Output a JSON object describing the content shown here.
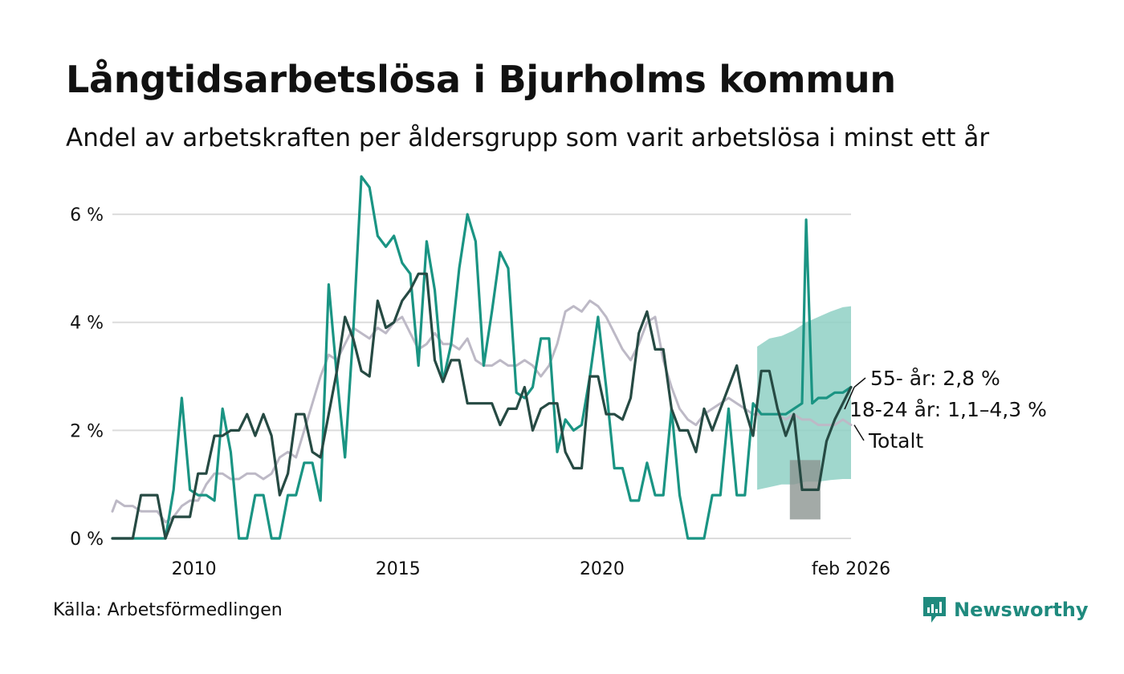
{
  "header": {
    "title": "Långtidsarbetslösa i Bjurholms kommun",
    "subtitle": "Andel av arbetskraften per åldersgrupp som varit arbetslösa i minst ett år"
  },
  "footer": {
    "source": "Källa: Arbetsförmedlingen",
    "brand": "Newsworthy"
  },
  "colors": {
    "teal": "#1a9483",
    "teal_band": "#8fd0c4",
    "dark": "#264a43",
    "dark_band": "#8c9591",
    "gray": "#bdb9c6",
    "grid": "#dcdcdc"
  },
  "chart_data": {
    "type": "line",
    "title": "Långtidsarbetslösa i Bjurholms kommun",
    "subtitle": "Andel av arbetskraften per åldersgrupp som varit arbetslösa i minst ett år",
    "xlabel": "",
    "ylabel": "",
    "xlim": [
      2008.0,
      2026.1
    ],
    "ylim": [
      0,
      6.5
    ],
    "y_ticks": [
      {
        "value": 0,
        "label": "0 %"
      },
      {
        "value": 2,
        "label": "2 %"
      },
      {
        "value": 4,
        "label": "4 %"
      },
      {
        "value": 6,
        "label": "6 %"
      }
    ],
    "x_ticks": [
      {
        "value": 2010,
        "label": "2010"
      },
      {
        "value": 2015,
        "label": "2015"
      },
      {
        "value": 2020,
        "label": "2020"
      },
      {
        "value": 2026.1,
        "label": "feb 2026"
      }
    ],
    "grid": true,
    "series": [
      {
        "name": "Totalt",
        "label": "Totalt",
        "color": "#bdb9c6",
        "points": [
          [
            2008.0,
            0.5
          ],
          [
            2008.1,
            0.7
          ],
          [
            2008.3,
            0.6
          ],
          [
            2008.5,
            0.6
          ],
          [
            2008.7,
            0.5
          ],
          [
            2008.9,
            0.5
          ],
          [
            2009.1,
            0.5
          ],
          [
            2009.3,
            0.3
          ],
          [
            2009.5,
            0.4
          ],
          [
            2009.7,
            0.6
          ],
          [
            2009.9,
            0.7
          ],
          [
            2010.1,
            0.7
          ],
          [
            2010.3,
            1.0
          ],
          [
            2010.5,
            1.2
          ],
          [
            2010.7,
            1.2
          ],
          [
            2010.9,
            1.1
          ],
          [
            2011.1,
            1.1
          ],
          [
            2011.3,
            1.2
          ],
          [
            2011.5,
            1.2
          ],
          [
            2011.7,
            1.1
          ],
          [
            2011.9,
            1.2
          ],
          [
            2012.1,
            1.5
          ],
          [
            2012.3,
            1.6
          ],
          [
            2012.5,
            1.5
          ],
          [
            2012.7,
            2.0
          ],
          [
            2012.9,
            2.5
          ],
          [
            2013.1,
            3.0
          ],
          [
            2013.3,
            3.4
          ],
          [
            2013.5,
            3.3
          ],
          [
            2013.7,
            3.6
          ],
          [
            2013.9,
            3.9
          ],
          [
            2014.1,
            3.8
          ],
          [
            2014.3,
            3.7
          ],
          [
            2014.5,
            3.9
          ],
          [
            2014.7,
            3.8
          ],
          [
            2014.9,
            4.0
          ],
          [
            2015.1,
            4.1
          ],
          [
            2015.3,
            3.8
          ],
          [
            2015.5,
            3.5
          ],
          [
            2015.7,
            3.6
          ],
          [
            2015.9,
            3.8
          ],
          [
            2016.1,
            3.6
          ],
          [
            2016.3,
            3.6
          ],
          [
            2016.5,
            3.5
          ],
          [
            2016.7,
            3.7
          ],
          [
            2016.9,
            3.3
          ],
          [
            2017.1,
            3.2
          ],
          [
            2017.3,
            3.2
          ],
          [
            2017.5,
            3.3
          ],
          [
            2017.7,
            3.2
          ],
          [
            2017.9,
            3.2
          ],
          [
            2018.1,
            3.3
          ],
          [
            2018.3,
            3.2
          ],
          [
            2018.5,
            3.0
          ],
          [
            2018.7,
            3.2
          ],
          [
            2018.9,
            3.6
          ],
          [
            2019.1,
            4.2
          ],
          [
            2019.3,
            4.3
          ],
          [
            2019.5,
            4.2
          ],
          [
            2019.7,
            4.4
          ],
          [
            2019.9,
            4.3
          ],
          [
            2020.1,
            4.1
          ],
          [
            2020.3,
            3.8
          ],
          [
            2020.5,
            3.5
          ],
          [
            2020.7,
            3.3
          ],
          [
            2020.9,
            3.6
          ],
          [
            2021.1,
            4.0
          ],
          [
            2021.3,
            4.1
          ],
          [
            2021.5,
            3.3
          ],
          [
            2021.7,
            2.8
          ],
          [
            2021.9,
            2.4
          ],
          [
            2022.1,
            2.2
          ],
          [
            2022.3,
            2.1
          ],
          [
            2022.5,
            2.3
          ],
          [
            2022.7,
            2.4
          ],
          [
            2022.9,
            2.5
          ],
          [
            2023.1,
            2.6
          ],
          [
            2023.3,
            2.5
          ],
          [
            2023.5,
            2.4
          ],
          [
            2023.7,
            2.3
          ],
          [
            2023.9,
            2.3
          ],
          [
            2024.1,
            2.3
          ],
          [
            2024.3,
            2.3
          ],
          [
            2024.5,
            2.2
          ],
          [
            2024.7,
            2.3
          ],
          [
            2024.9,
            2.2
          ],
          [
            2025.1,
            2.2
          ],
          [
            2025.3,
            2.1
          ],
          [
            2025.5,
            2.1
          ],
          [
            2025.7,
            2.1
          ],
          [
            2025.9,
            2.2
          ],
          [
            2026.1,
            2.1
          ]
        ]
      },
      {
        "name": "18-24 år",
        "label": "18-24 år: 1,1–4,3 %",
        "color": "#1a9483",
        "band_color": "#8fd0c4",
        "band": {
          "x": [
            2023.8,
            2024.1,
            2024.4,
            2024.7,
            2025.0,
            2025.3,
            2025.6,
            2025.9,
            2026.1
          ],
          "low": [
            0.9,
            0.95,
            1.0,
            1.0,
            1.05,
            1.05,
            1.08,
            1.1,
            1.1
          ],
          "high": [
            3.55,
            3.7,
            3.75,
            3.85,
            4.0,
            4.1,
            4.2,
            4.28,
            4.3
          ]
        },
        "points": [
          [
            2008.0,
            0.0
          ],
          [
            2009.1,
            0.0
          ],
          [
            2009.3,
            0.0
          ],
          [
            2009.5,
            0.9
          ],
          [
            2009.7,
            2.6
          ],
          [
            2009.9,
            0.9
          ],
          [
            2010.1,
            0.8
          ],
          [
            2010.3,
            0.8
          ],
          [
            2010.5,
            0.7
          ],
          [
            2010.7,
            2.4
          ],
          [
            2010.9,
            1.6
          ],
          [
            2011.1,
            0.0
          ],
          [
            2011.3,
            0.0
          ],
          [
            2011.5,
            0.8
          ],
          [
            2011.7,
            0.8
          ],
          [
            2011.9,
            0.0
          ],
          [
            2012.1,
            0.0
          ],
          [
            2012.3,
            0.8
          ],
          [
            2012.5,
            0.8
          ],
          [
            2012.7,
            1.4
          ],
          [
            2012.9,
            1.4
          ],
          [
            2013.1,
            0.7
          ],
          [
            2013.3,
            4.7
          ],
          [
            2013.5,
            3.0
          ],
          [
            2013.7,
            1.5
          ],
          [
            2013.9,
            3.8
          ],
          [
            2014.1,
            6.7
          ],
          [
            2014.3,
            6.5
          ],
          [
            2014.5,
            5.6
          ],
          [
            2014.7,
            5.4
          ],
          [
            2014.9,
            5.6
          ],
          [
            2015.1,
            5.1
          ],
          [
            2015.3,
            4.9
          ],
          [
            2015.5,
            3.2
          ],
          [
            2015.7,
            5.5
          ],
          [
            2015.9,
            4.6
          ],
          [
            2016.1,
            2.9
          ],
          [
            2016.3,
            3.6
          ],
          [
            2016.5,
            5.0
          ],
          [
            2016.7,
            6.0
          ],
          [
            2016.9,
            5.5
          ],
          [
            2017.1,
            3.2
          ],
          [
            2017.3,
            4.2
          ],
          [
            2017.5,
            5.3
          ],
          [
            2017.7,
            5.0
          ],
          [
            2017.9,
            2.7
          ],
          [
            2018.1,
            2.6
          ],
          [
            2018.3,
            2.8
          ],
          [
            2018.5,
            3.7
          ],
          [
            2018.7,
            3.7
          ],
          [
            2018.9,
            1.6
          ],
          [
            2019.1,
            2.2
          ],
          [
            2019.3,
            2.0
          ],
          [
            2019.5,
            2.1
          ],
          [
            2019.7,
            3.0
          ],
          [
            2019.9,
            4.1
          ],
          [
            2020.1,
            2.8
          ],
          [
            2020.3,
            1.3
          ],
          [
            2020.5,
            1.3
          ],
          [
            2020.7,
            0.7
          ],
          [
            2020.9,
            0.7
          ],
          [
            2021.1,
            1.4
          ],
          [
            2021.3,
            0.8
          ],
          [
            2021.5,
            0.8
          ],
          [
            2021.7,
            2.4
          ],
          [
            2021.9,
            0.8
          ],
          [
            2022.1,
            0.0
          ],
          [
            2022.3,
            0.0
          ],
          [
            2022.5,
            0.0
          ],
          [
            2022.7,
            0.8
          ],
          [
            2022.9,
            0.8
          ],
          [
            2023.1,
            2.4
          ],
          [
            2023.3,
            0.8
          ],
          [
            2023.5,
            0.8
          ],
          [
            2023.7,
            2.5
          ],
          [
            2023.9,
            2.3
          ],
          [
            2024.1,
            2.3
          ],
          [
            2024.3,
            2.3
          ],
          [
            2024.5,
            2.3
          ],
          [
            2024.7,
            2.4
          ],
          [
            2024.9,
            2.5
          ],
          [
            2025.0,
            5.9
          ],
          [
            2025.15,
            2.5
          ],
          [
            2025.3,
            2.6
          ],
          [
            2025.5,
            2.6
          ],
          [
            2025.7,
            2.7
          ],
          [
            2025.9,
            2.7
          ],
          [
            2026.1,
            2.8
          ]
        ]
      },
      {
        "name": "55- år",
        "label": "55- år: 2,8 %",
        "color": "#264a43",
        "band_color": "#8c9591",
        "band": {
          "x": [
            2024.6,
            2024.8,
            2025.0,
            2025.2,
            2025.35
          ],
          "low": [
            0.35,
            0.35,
            0.35,
            0.35,
            0.35
          ],
          "high": [
            1.45,
            1.45,
            1.45,
            1.45,
            1.45
          ]
        },
        "points": [
          [
            2008.0,
            0.0
          ],
          [
            2008.5,
            0.0
          ],
          [
            2008.7,
            0.8
          ],
          [
            2008.9,
            0.8
          ],
          [
            2009.1,
            0.8
          ],
          [
            2009.3,
            0.0
          ],
          [
            2009.5,
            0.4
          ],
          [
            2009.7,
            0.4
          ],
          [
            2009.9,
            0.4
          ],
          [
            2010.1,
            1.2
          ],
          [
            2010.3,
            1.2
          ],
          [
            2010.5,
            1.9
          ],
          [
            2010.7,
            1.9
          ],
          [
            2010.9,
            2.0
          ],
          [
            2011.1,
            2.0
          ],
          [
            2011.3,
            2.3
          ],
          [
            2011.5,
            1.9
          ],
          [
            2011.7,
            2.3
          ],
          [
            2011.9,
            1.9
          ],
          [
            2012.1,
            0.8
          ],
          [
            2012.3,
            1.2
          ],
          [
            2012.5,
            2.3
          ],
          [
            2012.7,
            2.3
          ],
          [
            2012.9,
            1.6
          ],
          [
            2013.1,
            1.5
          ],
          [
            2013.3,
            2.3
          ],
          [
            2013.5,
            3.1
          ],
          [
            2013.7,
            4.1
          ],
          [
            2013.9,
            3.7
          ],
          [
            2014.1,
            3.1
          ],
          [
            2014.3,
            3.0
          ],
          [
            2014.5,
            4.4
          ],
          [
            2014.7,
            3.9
          ],
          [
            2014.9,
            4.0
          ],
          [
            2015.1,
            4.4
          ],
          [
            2015.3,
            4.6
          ],
          [
            2015.5,
            4.9
          ],
          [
            2015.7,
            4.9
          ],
          [
            2015.9,
            3.3
          ],
          [
            2016.1,
            2.9
          ],
          [
            2016.3,
            3.3
          ],
          [
            2016.5,
            3.3
          ],
          [
            2016.7,
            2.5
          ],
          [
            2016.9,
            2.5
          ],
          [
            2017.1,
            2.5
          ],
          [
            2017.3,
            2.5
          ],
          [
            2017.5,
            2.1
          ],
          [
            2017.7,
            2.4
          ],
          [
            2017.9,
            2.4
          ],
          [
            2018.1,
            2.8
          ],
          [
            2018.3,
            2.0
          ],
          [
            2018.5,
            2.4
          ],
          [
            2018.7,
            2.5
          ],
          [
            2018.9,
            2.5
          ],
          [
            2019.1,
            1.6
          ],
          [
            2019.3,
            1.3
          ],
          [
            2019.5,
            1.3
          ],
          [
            2019.7,
            3.0
          ],
          [
            2019.9,
            3.0
          ],
          [
            2020.1,
            2.3
          ],
          [
            2020.3,
            2.3
          ],
          [
            2020.5,
            2.2
          ],
          [
            2020.7,
            2.6
          ],
          [
            2020.9,
            3.8
          ],
          [
            2021.1,
            4.2
          ],
          [
            2021.3,
            3.5
          ],
          [
            2021.5,
            3.5
          ],
          [
            2021.7,
            2.4
          ],
          [
            2021.9,
            2.0
          ],
          [
            2022.1,
            2.0
          ],
          [
            2022.3,
            1.6
          ],
          [
            2022.5,
            2.4
          ],
          [
            2022.7,
            2.0
          ],
          [
            2022.9,
            2.4
          ],
          [
            2023.1,
            2.8
          ],
          [
            2023.3,
            3.2
          ],
          [
            2023.5,
            2.4
          ],
          [
            2023.7,
            1.9
          ],
          [
            2023.9,
            3.1
          ],
          [
            2024.1,
            3.1
          ],
          [
            2024.3,
            2.4
          ],
          [
            2024.5,
            1.9
          ],
          [
            2024.7,
            2.3
          ],
          [
            2024.9,
            0.9
          ],
          [
            2025.1,
            0.9
          ],
          [
            2025.3,
            0.9
          ],
          [
            2025.5,
            1.8
          ],
          [
            2025.7,
            2.2
          ],
          [
            2025.9,
            2.5
          ],
          [
            2026.1,
            2.8
          ]
        ]
      }
    ]
  }
}
